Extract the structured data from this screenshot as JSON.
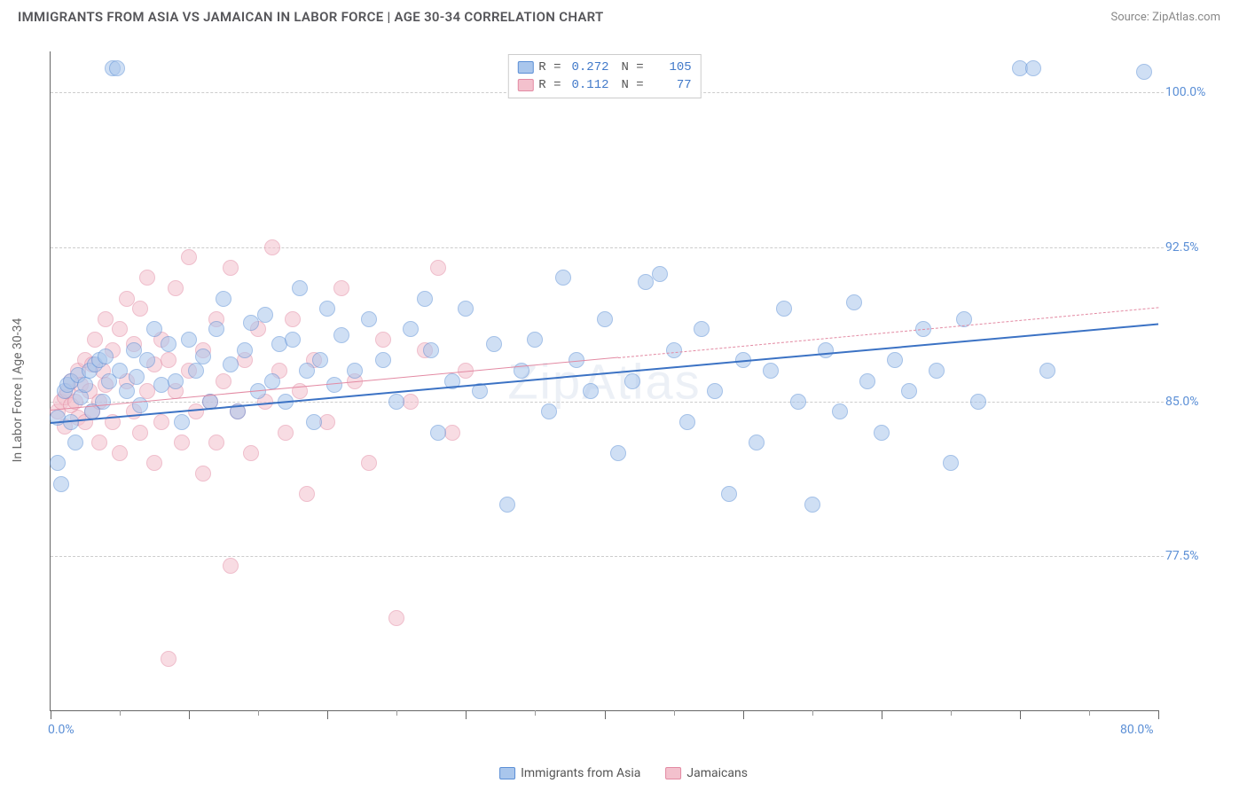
{
  "header": {
    "title": "IMMIGRANTS FROM ASIA VS JAMAICAN IN LABOR FORCE | AGE 30-34 CORRELATION CHART",
    "source_prefix": "Source: ",
    "source_name": "ZipAtlas.com"
  },
  "watermark": "ZipAtlas",
  "chart": {
    "type": "scatter",
    "y_axis_title": "In Labor Force | Age 30-34",
    "xlim": [
      0,
      80
    ],
    "ylim": [
      70,
      102
    ],
    "x_label_min": "0.0%",
    "x_label_max": "80.0%",
    "y_ticks": [
      {
        "v": 77.5,
        "label": "77.5%"
      },
      {
        "v": 85.0,
        "label": "85.0%"
      },
      {
        "v": 92.5,
        "label": "92.5%"
      },
      {
        "v": 100.0,
        "label": "100.0%"
      }
    ],
    "x_major_ticks": [
      0,
      10,
      20,
      30,
      40,
      50,
      60,
      70,
      80
    ],
    "x_minor_ticks": [
      5,
      15,
      25,
      35,
      45,
      55,
      65,
      75
    ],
    "grid_color": "#cccccc",
    "background_color": "#ffffff",
    "marker_radius": 9,
    "marker_opacity": 0.55,
    "series": [
      {
        "id": "asia",
        "name": "Immigrants from Asia",
        "fill": "#a9c6ec",
        "stroke": "#5b8fd6",
        "trend_color": "#3b72c4",
        "trend_width": 2.2,
        "trend_dash": "solid",
        "trend_start_y": 84.0,
        "trend_end_y": 88.8,
        "R": "0.272",
        "N": "105",
        "points": [
          [
            0.5,
            82.0
          ],
          [
            0.5,
            84.2
          ],
          [
            0.8,
            81.0
          ],
          [
            1.0,
            85.5
          ],
          [
            1.2,
            85.8
          ],
          [
            1.5,
            86.0
          ],
          [
            1.5,
            84.0
          ],
          [
            1.8,
            83.0
          ],
          [
            2.0,
            86.3
          ],
          [
            2.2,
            85.2
          ],
          [
            2.5,
            85.8
          ],
          [
            2.8,
            86.5
          ],
          [
            3.0,
            84.5
          ],
          [
            3.2,
            86.8
          ],
          [
            3.5,
            87.0
          ],
          [
            3.8,
            85.0
          ],
          [
            4.0,
            87.2
          ],
          [
            4.2,
            86.0
          ],
          [
            4.5,
            101.2
          ],
          [
            4.8,
            101.2
          ],
          [
            5.0,
            86.5
          ],
          [
            5.5,
            85.5
          ],
          [
            6.0,
            87.5
          ],
          [
            6.2,
            86.2
          ],
          [
            6.5,
            84.8
          ],
          [
            7.0,
            87.0
          ],
          [
            7.5,
            88.5
          ],
          [
            8.0,
            85.8
          ],
          [
            8.5,
            87.8
          ],
          [
            9.0,
            86.0
          ],
          [
            9.5,
            84.0
          ],
          [
            10.0,
            88.0
          ],
          [
            10.5,
            86.5
          ],
          [
            11.0,
            87.2
          ],
          [
            11.5,
            85.0
          ],
          [
            12.0,
            88.5
          ],
          [
            12.5,
            90.0
          ],
          [
            13.0,
            86.8
          ],
          [
            13.5,
            84.5
          ],
          [
            14.0,
            87.5
          ],
          [
            14.5,
            88.8
          ],
          [
            15.0,
            85.5
          ],
          [
            15.5,
            89.2
          ],
          [
            16.0,
            86.0
          ],
          [
            16.5,
            87.8
          ],
          [
            17.0,
            85.0
          ],
          [
            17.5,
            88.0
          ],
          [
            18.0,
            90.5
          ],
          [
            18.5,
            86.5
          ],
          [
            19.0,
            84.0
          ],
          [
            19.5,
            87.0
          ],
          [
            20.0,
            89.5
          ],
          [
            20.5,
            85.8
          ],
          [
            21.0,
            88.2
          ],
          [
            22.0,
            86.5
          ],
          [
            23.0,
            89.0
          ],
          [
            24.0,
            87.0
          ],
          [
            25.0,
            85.0
          ],
          [
            26.0,
            88.5
          ],
          [
            27.0,
            90.0
          ],
          [
            27.5,
            87.5
          ],
          [
            28.0,
            83.5
          ],
          [
            29.0,
            86.0
          ],
          [
            30.0,
            89.5
          ],
          [
            31.0,
            85.5
          ],
          [
            32.0,
            87.8
          ],
          [
            33.0,
            80.0
          ],
          [
            34.0,
            86.5
          ],
          [
            35.0,
            88.0
          ],
          [
            36.0,
            84.5
          ],
          [
            37.0,
            91.0
          ],
          [
            38.0,
            87.0
          ],
          [
            39.0,
            85.5
          ],
          [
            40.0,
            89.0
          ],
          [
            41.0,
            82.5
          ],
          [
            42.0,
            86.0
          ],
          [
            43.0,
            90.8
          ],
          [
            44.0,
            91.2
          ],
          [
            45.0,
            87.5
          ],
          [
            46.0,
            84.0
          ],
          [
            47.0,
            88.5
          ],
          [
            48.0,
            85.5
          ],
          [
            49.0,
            80.5
          ],
          [
            50.0,
            87.0
          ],
          [
            51.0,
            83.0
          ],
          [
            52.0,
            86.5
          ],
          [
            53.0,
            89.5
          ],
          [
            54.0,
            85.0
          ],
          [
            55.0,
            80.0
          ],
          [
            56.0,
            87.5
          ],
          [
            57.0,
            84.5
          ],
          [
            58.0,
            89.8
          ],
          [
            59.0,
            86.0
          ],
          [
            60.0,
            83.5
          ],
          [
            61.0,
            87.0
          ],
          [
            62.0,
            85.5
          ],
          [
            63.0,
            88.5
          ],
          [
            64.0,
            86.5
          ],
          [
            65.0,
            82.0
          ],
          [
            66.0,
            89.0
          ],
          [
            67.0,
            85.0
          ],
          [
            70.0,
            101.2
          ],
          [
            71.0,
            101.2
          ],
          [
            72.0,
            86.5
          ],
          [
            79.0,
            101.0
          ]
        ]
      },
      {
        "id": "jamaicans",
        "name": "Jamaicans",
        "fill": "#f3c1cd",
        "stroke": "#e38aa3",
        "trend_color": "#e38aa3",
        "trend_width": 1.6,
        "trend_dash": "solid_then_dash",
        "trend_solid_until_x": 41,
        "trend_start_y": 84.6,
        "trend_end_y": 89.6,
        "R": "0.112",
        "N": "77",
        "points": [
          [
            0.5,
            84.5
          ],
          [
            0.8,
            85.0
          ],
          [
            1.0,
            85.2
          ],
          [
            1.0,
            83.8
          ],
          [
            1.2,
            85.5
          ],
          [
            1.5,
            84.8
          ],
          [
            1.5,
            86.0
          ],
          [
            1.8,
            85.0
          ],
          [
            2.0,
            86.5
          ],
          [
            2.0,
            84.2
          ],
          [
            2.2,
            85.8
          ],
          [
            2.5,
            84.0
          ],
          [
            2.5,
            87.0
          ],
          [
            2.8,
            85.5
          ],
          [
            3.0,
            86.8
          ],
          [
            3.0,
            84.5
          ],
          [
            3.2,
            88.0
          ],
          [
            3.5,
            85.0
          ],
          [
            3.5,
            83.0
          ],
          [
            3.8,
            86.5
          ],
          [
            4.0,
            89.0
          ],
          [
            4.0,
            85.8
          ],
          [
            4.5,
            87.5
          ],
          [
            4.5,
            84.0
          ],
          [
            5.0,
            88.5
          ],
          [
            5.0,
            82.5
          ],
          [
            5.5,
            86.0
          ],
          [
            5.5,
            90.0
          ],
          [
            6.0,
            84.5
          ],
          [
            6.0,
            87.8
          ],
          [
            6.5,
            89.5
          ],
          [
            6.5,
            83.5
          ],
          [
            7.0,
            85.5
          ],
          [
            7.0,
            91.0
          ],
          [
            7.5,
            86.8
          ],
          [
            7.5,
            82.0
          ],
          [
            8.0,
            88.0
          ],
          [
            8.0,
            84.0
          ],
          [
            8.5,
            87.0
          ],
          [
            8.5,
            72.5
          ],
          [
            9.0,
            85.5
          ],
          [
            9.0,
            90.5
          ],
          [
            9.5,
            83.0
          ],
          [
            10.0,
            86.5
          ],
          [
            10.0,
            92.0
          ],
          [
            10.5,
            84.5
          ],
          [
            11.0,
            87.5
          ],
          [
            11.0,
            81.5
          ],
          [
            11.5,
            85.0
          ],
          [
            12.0,
            89.0
          ],
          [
            12.0,
            83.0
          ],
          [
            12.5,
            86.0
          ],
          [
            13.0,
            91.5
          ],
          [
            13.0,
            77.0
          ],
          [
            13.5,
            84.5
          ],
          [
            14.0,
            87.0
          ],
          [
            14.5,
            82.5
          ],
          [
            15.0,
            88.5
          ],
          [
            15.5,
            85.0
          ],
          [
            16.0,
            92.5
          ],
          [
            16.5,
            86.5
          ],
          [
            17.0,
            83.5
          ],
          [
            17.5,
            89.0
          ],
          [
            18.0,
            85.5
          ],
          [
            18.5,
            80.5
          ],
          [
            19.0,
            87.0
          ],
          [
            20.0,
            84.0
          ],
          [
            21.0,
            90.5
          ],
          [
            22.0,
            86.0
          ],
          [
            23.0,
            82.0
          ],
          [
            24.0,
            88.0
          ],
          [
            25.0,
            74.5
          ],
          [
            26.0,
            85.0
          ],
          [
            27.0,
            87.5
          ],
          [
            28.0,
            91.5
          ],
          [
            29.0,
            83.5
          ],
          [
            30.0,
            86.5
          ]
        ]
      }
    ]
  },
  "stats_box": {
    "rows": [
      {
        "swatch_fill": "#a9c6ec",
        "swatch_stroke": "#5b8fd6",
        "r_label": "R =",
        "r_val": "0.272",
        "n_label": "N =",
        "n_val": "105"
      },
      {
        "swatch_fill": "#f3c1cd",
        "swatch_stroke": "#e38aa3",
        "r_label": "R =",
        "r_val": "0.112",
        "n_label": "N =",
        "n_val": "77"
      }
    ]
  },
  "bottom_legend": {
    "items": [
      {
        "swatch_fill": "#a9c6ec",
        "swatch_stroke": "#5b8fd6",
        "label": "Immigrants from Asia"
      },
      {
        "swatch_fill": "#f3c1cd",
        "swatch_stroke": "#e38aa3",
        "label": "Jamaicans"
      }
    ]
  }
}
